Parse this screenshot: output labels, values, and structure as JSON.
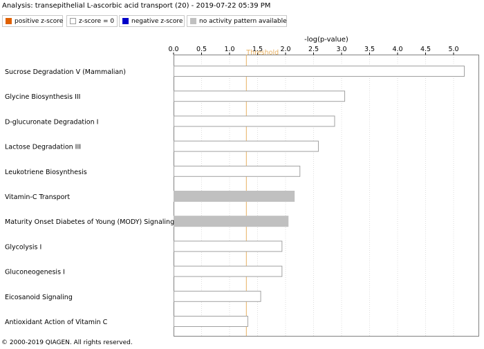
{
  "header": {
    "title": "Analysis: transepithelial L-ascorbic acid transport (20) - 2019-07-22 05:39 PM"
  },
  "legend": [
    {
      "label": "positive z-score",
      "color": "#e06000",
      "border": "#e06000"
    },
    {
      "label": "z-score = 0",
      "color": "#ffffff",
      "border": "#999999"
    },
    {
      "label": "negative z-score",
      "color": "#0000c8",
      "border": "#0000c8"
    },
    {
      "label": "no activity pattern available",
      "color": "#c0c0c0",
      "border": "#c0c0c0"
    }
  ],
  "footer": {
    "copyright": "© 2000-2019 QIAGEN. All rights reserved."
  },
  "chart_data": {
    "type": "bar",
    "orientation": "horizontal",
    "xlabel": "-log(p-value)",
    "xlim": [
      0,
      5.2
    ],
    "ticks": [
      "0.0",
      "0.5",
      "1.0",
      "1.5",
      "2.0",
      "2.5",
      "3.0",
      "3.5",
      "4.0",
      "4.5",
      "5.0"
    ],
    "threshold": {
      "label": "Threshold",
      "value": 1.3,
      "color": "#e8b060"
    },
    "categories": [
      "Sucrose Degradation V (Mammalian)",
      "Glycine Biosynthesis III",
      "D-glucuronate Degradation I",
      "Lactose Degradation III",
      "Leukotriene Biosynthesis",
      "Vitamin-C Transport",
      "Maturity Onset Diabetes of Young (MODY) Signaling",
      "Glycolysis I",
      "Gluconeogenesis I",
      "Eicosanoid Signaling",
      "Antioxidant Action of Vitamin C"
    ],
    "values": [
      5.2,
      3.05,
      2.87,
      2.58,
      2.25,
      2.15,
      2.04,
      1.93,
      1.93,
      1.55,
      1.32
    ],
    "bar_types": [
      "zero",
      "zero",
      "zero",
      "zero",
      "zero",
      "na",
      "na",
      "zero",
      "zero",
      "zero",
      "zero"
    ],
    "grid": true
  }
}
